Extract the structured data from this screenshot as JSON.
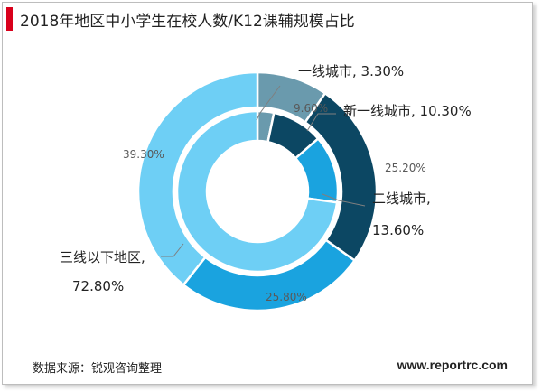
{
  "header": {
    "title": "2018年地区中小学生在校人数/K12课辅规模占比"
  },
  "footer": {
    "source": "数据来源：锐观咨询整理",
    "site": "www.reportrc.com"
  },
  "chart_data": {
    "type": "pie",
    "variant": "double-donut",
    "categories": [
      "一线城市",
      "新一线城市",
      "二线城市",
      "三线以下地区"
    ],
    "colors": [
      "#6a9aad",
      "#0c4763",
      "#1aa3df",
      "#6ecff5"
    ],
    "series": [
      {
        "ring": "outer",
        "values": [
          9.6,
          25.2,
          25.8,
          39.3
        ],
        "labels": [
          "9.60%",
          "25.20%",
          "25.80%",
          "39.30%"
        ]
      },
      {
        "ring": "inner",
        "values": [
          3.3,
          10.3,
          13.6,
          72.8
        ],
        "labels": [
          "一线城市, 3.30%",
          "新一线城市, 10.30%",
          "二线城市,",
          "三线以下地区,"
        ],
        "labels2": [
          "",
          "",
          "13.60%",
          "72.80%"
        ]
      }
    ]
  }
}
